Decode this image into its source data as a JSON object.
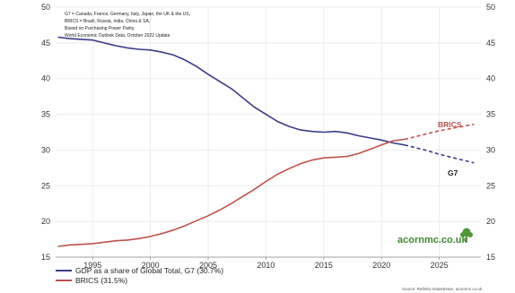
{
  "chart_data": {
    "type": "line",
    "title": "",
    "xlabel": "",
    "ylabel": "",
    "notes": [
      "G7 = Canada, France, Germany, Italy, Japan, the UK & the US,",
      "BRICS = Brazil, Russia, India, China & SA,",
      "Based on Purchasing Power Parity,",
      "World Economic Outlook Data, October 2022 Update"
    ],
    "x_ticks": [
      1995,
      2000,
      2005,
      2010,
      2015,
      2020,
      2025
    ],
    "y_ticks": [
      15,
      20,
      25,
      30,
      35,
      40,
      45,
      50
    ],
    "xlim": [
      1991.8,
      2028.6
    ],
    "ylim": [
      15,
      50
    ],
    "grid": true,
    "forecast_from": 2022,
    "series": [
      {
        "name": "GDP as a share of Global Total, G7 (30.7%)",
        "label": "G7",
        "color": "#3b3b8c",
        "x": [
          1992,
          1993,
          1994,
          1995,
          1996,
          1997,
          1998,
          1999,
          2000,
          2001,
          2002,
          2003,
          2004,
          2005,
          2006,
          2007,
          2008,
          2009,
          2010,
          2011,
          2012,
          2013,
          2014,
          2015,
          2016,
          2017,
          2018,
          2019,
          2020,
          2021,
          2022,
          2023,
          2024,
          2025,
          2026,
          2027,
          2028
        ],
        "values": [
          45.8,
          45.6,
          45.5,
          45.4,
          45.0,
          44.6,
          44.3,
          44.1,
          44.0,
          43.7,
          43.3,
          42.6,
          41.7,
          40.6,
          39.6,
          38.6,
          37.3,
          36.0,
          35.0,
          34.0,
          33.3,
          32.8,
          32.6,
          32.5,
          32.6,
          32.4,
          32.0,
          31.7,
          31.4,
          31.0,
          30.7,
          30.3,
          29.9,
          29.4,
          29.0,
          28.6,
          28.2
        ]
      },
      {
        "name": "BRICS (31.5%)",
        "label": "BRICS",
        "color": "#c0504d",
        "x": [
          1992,
          1993,
          1994,
          1995,
          1996,
          1997,
          1998,
          1999,
          2000,
          2001,
          2002,
          2003,
          2004,
          2005,
          2006,
          2007,
          2008,
          2009,
          2010,
          2011,
          2012,
          2013,
          2014,
          2015,
          2016,
          2017,
          2018,
          2019,
          2020,
          2021,
          2022,
          2023,
          2024,
          2025,
          2026,
          2027,
          2028
        ],
        "values": [
          16.5,
          16.7,
          16.8,
          16.9,
          17.1,
          17.3,
          17.4,
          17.6,
          17.9,
          18.3,
          18.8,
          19.4,
          20.1,
          20.8,
          21.6,
          22.5,
          23.5,
          24.5,
          25.6,
          26.6,
          27.4,
          28.1,
          28.6,
          28.9,
          29.0,
          29.1,
          29.5,
          30.1,
          30.7,
          31.3,
          31.5,
          31.9,
          32.3,
          32.7,
          33.0,
          33.3,
          33.6
        ]
      }
    ]
  },
  "branding": {
    "site": "acornmc.co.uk",
    "source": "Source: Refinitiv Datastream, acornmc.co.uk"
  }
}
